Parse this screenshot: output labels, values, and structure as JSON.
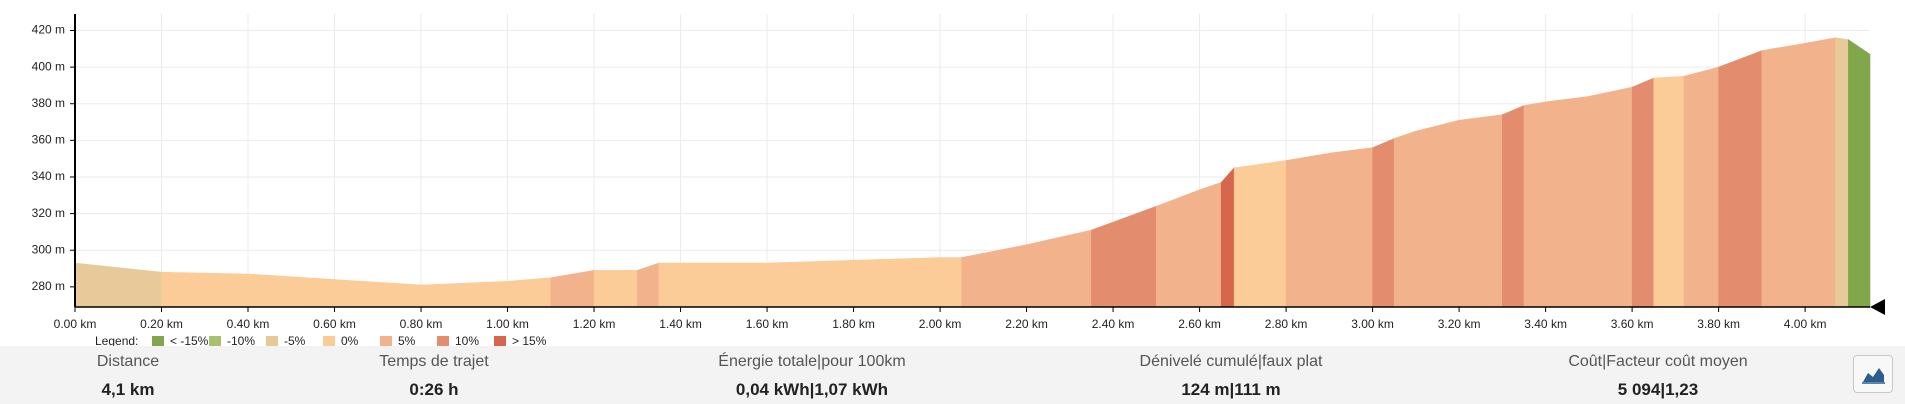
{
  "chart_data": {
    "type": "area-profile",
    "x": [
      0,
      0.2,
      0.4,
      0.6,
      0.8,
      1.0,
      1.1,
      1.2,
      1.3,
      1.35,
      1.6,
      1.8,
      2.0,
      2.05,
      2.2,
      2.35,
      2.5,
      2.6,
      2.65,
      2.68,
      2.8,
      2.9,
      3.0,
      3.05,
      3.1,
      3.2,
      3.3,
      3.35,
      3.4,
      3.5,
      3.6,
      3.65,
      3.72,
      3.8,
      3.9,
      4.0,
      4.07,
      4.1,
      4.15
    ],
    "values": [
      293,
      288,
      287,
      284,
      281,
      283,
      285,
      289,
      289,
      293,
      293,
      294.5,
      296,
      296,
      303,
      311,
      324,
      333,
      337,
      345,
      349,
      353,
      356,
      361,
      365,
      371,
      374,
      379,
      381,
      384,
      389,
      394,
      395,
      400,
      409,
      413,
      416,
      415,
      407
    ],
    "segment_colors": [
      "#e8c99a",
      "#fbcb98",
      "#fbcb98",
      "#fbcb98",
      "#fbcb98",
      "#fbcb98",
      "#f2b38c",
      "#fbcb98",
      "#f2b38c",
      "#fbcb98",
      "#fbcb98",
      "#fbcb98",
      "#fbcb98",
      "#f2b38c",
      "#f2b38c",
      "#e48d6e",
      "#f2b38c",
      "#f2b38c",
      "#d6674d",
      "#fbcb98",
      "#f2b38c",
      "#f2b38c",
      "#e48d6e",
      "#f2b38c",
      "#f2b38c",
      "#f2b38c",
      "#e48d6e",
      "#f2b38c",
      "#f2b38c",
      "#f2b38c",
      "#e48d6e",
      "#fbcb98",
      "#f2b38c",
      "#e48d6e",
      "#f2b38c",
      "#f2b38c",
      "#e8c99a",
      "#82a64c"
    ],
    "xlim": [
      0,
      4.15
    ],
    "ylim": [
      269,
      429
    ],
    "xticks": [
      {
        "value": 0,
        "label": "0.00 km"
      },
      {
        "value": 0.2,
        "label": "0.20 km"
      },
      {
        "value": 0.4,
        "label": "0.40 km"
      },
      {
        "value": 0.6,
        "label": "0.60 km"
      },
      {
        "value": 0.8,
        "label": "0.80 km"
      },
      {
        "value": 1.0,
        "label": "1.00 km"
      },
      {
        "value": 1.2,
        "label": "1.20 km"
      },
      {
        "value": 1.4,
        "label": "1.40 km"
      },
      {
        "value": 1.6,
        "label": "1.60 km"
      },
      {
        "value": 1.8,
        "label": "1.80 km"
      },
      {
        "value": 2.0,
        "label": "2.00 km"
      },
      {
        "value": 2.2,
        "label": "2.20 km"
      },
      {
        "value": 2.4,
        "label": "2.40 km"
      },
      {
        "value": 2.6,
        "label": "2.60 km"
      },
      {
        "value": 2.8,
        "label": "2.80 km"
      },
      {
        "value": 3.0,
        "label": "3.00 km"
      },
      {
        "value": 3.2,
        "label": "3.20 km"
      },
      {
        "value": 3.4,
        "label": "3.40 km"
      },
      {
        "value": 3.6,
        "label": "3.60 km"
      },
      {
        "value": 3.8,
        "label": "3.80 km"
      },
      {
        "value": 4.0,
        "label": "4.00 km"
      }
    ],
    "yticks": [
      {
        "value": 280,
        "label": "280 m"
      },
      {
        "value": 300,
        "label": "300 m"
      },
      {
        "value": 320,
        "label": "320 m"
      },
      {
        "value": 340,
        "label": "340 m"
      },
      {
        "value": 360,
        "label": "360 m"
      },
      {
        "value": 380,
        "label": "380 m"
      },
      {
        "value": 400,
        "label": "400 m"
      },
      {
        "value": 420,
        "label": "420 m"
      }
    ],
    "grid": true,
    "legend": {
      "title": "Legend:",
      "items": [
        {
          "label": "< -15%",
          "color": "#82a64c"
        },
        {
          "label": "-10%",
          "color": "#a9c06e"
        },
        {
          "label": "-5%",
          "color": "#e8c99a"
        },
        {
          "label": "0%",
          "color": "#fbcb98"
        },
        {
          "label": "5%",
          "color": "#f2b38c"
        },
        {
          "label": "10%",
          "color": "#e48d6e"
        },
        {
          "label": "> 15%",
          "color": "#d6674d"
        }
      ]
    }
  },
  "stats": [
    {
      "label": "Distance",
      "value": "4,1 km"
    },
    {
      "label": "Temps de trajet",
      "value": "0:26 h"
    },
    {
      "label": "Énergie totale|pour 100km",
      "value": "0,04 kWh|1,07 kWh"
    },
    {
      "label": "Dénivelé cumulé|faux plat",
      "value": "124 m|111 m"
    },
    {
      "label": "Coût|Facteur coût moyen",
      "value": "5 094|1,23"
    }
  ]
}
